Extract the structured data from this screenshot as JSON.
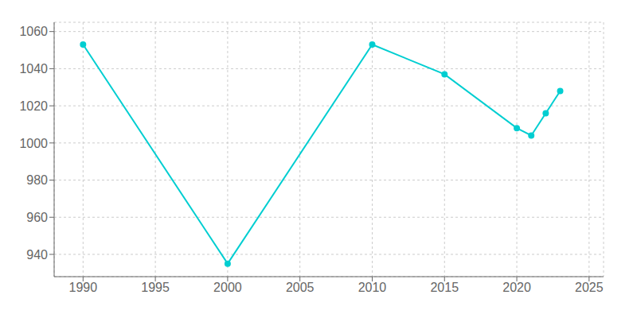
{
  "chart_data": {
    "type": "line",
    "x": [
      1990,
      2000,
      2010,
      2015,
      2020,
      2021,
      2022,
      2023
    ],
    "values": [
      1053,
      935,
      1053,
      1037,
      1008,
      1004,
      1016,
      1028
    ],
    "color": "#00CED1",
    "marker": "circle",
    "xlim": [
      1988,
      2026
    ],
    "ylim": [
      928,
      1065
    ],
    "xticks": [
      1990,
      1995,
      2000,
      2005,
      2010,
      2015,
      2020,
      2025
    ],
    "yticks": [
      940,
      960,
      980,
      1000,
      1020,
      1040,
      1060
    ],
    "grid": true
  }
}
